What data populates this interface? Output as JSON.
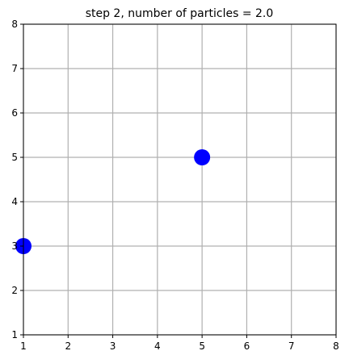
{
  "chart_data": {
    "type": "scatter",
    "title": "step 2, number of particles = 2.0",
    "xlabel": "",
    "ylabel": "",
    "xlim": [
      1,
      8
    ],
    "ylim": [
      1,
      8
    ],
    "xticks": [
      "1",
      "2",
      "3",
      "4",
      "5",
      "6",
      "7",
      "8"
    ],
    "yticks": [
      "1",
      "2",
      "3",
      "4",
      "5",
      "6",
      "7",
      "8"
    ],
    "grid": true,
    "series": [
      {
        "points": [
          {
            "x": 1,
            "y": 3
          },
          {
            "x": 5,
            "y": 5
          }
        ],
        "color": "#0000ff"
      }
    ],
    "colors": {
      "grid": "#b0b0b0",
      "axis": "#000000"
    }
  }
}
